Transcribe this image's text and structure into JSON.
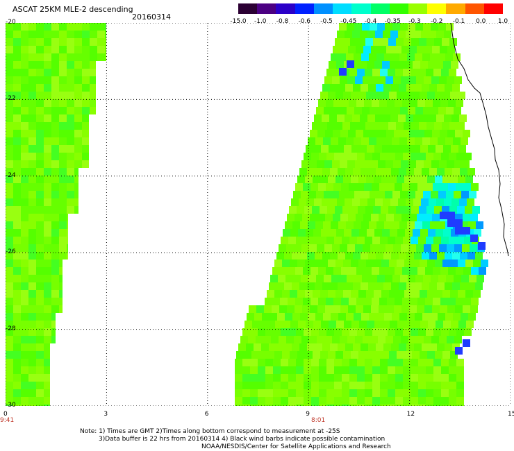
{
  "header": {
    "title": "ASCAT 25KM MLE-2 descending",
    "date": "20160314"
  },
  "colorbar": {
    "labels": [
      "-15.0",
      "-1.0",
      "-0.8",
      "-0.6",
      "-0.5",
      "-0.45",
      "-0.4",
      "-0.35",
      "-0.3",
      "-0.2",
      "-0.1",
      "0.0",
      "1.0"
    ],
    "colors": [
      "#2b0033",
      "#4b0082",
      "#2a00c8",
      "#0020ff",
      "#0090ff",
      "#00ddff",
      "#00ffcc",
      "#00ff66",
      "#33ff00",
      "#99ff00",
      "#ffff00",
      "#ffaa00",
      "#ff5500",
      "#ff0000"
    ]
  },
  "axes": {
    "y_ticks": [
      "-20",
      "-22",
      "-24",
      "-26",
      "-28",
      "-30"
    ],
    "x_ticks": [
      "0",
      "3",
      "6",
      "9",
      "12",
      "15"
    ],
    "x_range": [
      0,
      15
    ],
    "y_range": [
      -30,
      -20
    ],
    "grid": true
  },
  "times": [
    "9:41",
    "8:01"
  ],
  "notes": [
    "Note: 1) Times are GMT 2)Times along bottom correspond to measurement at -25S",
    "3)Data buffer is 22 hrs from 20160314 4) Black wind barbs indicate possible contamination",
    "NOAA/NESDIS/Center for Satellite Applications and Research"
  ],
  "map_data": {
    "field": "MLE-2",
    "units_scale": "colorbar",
    "swaths": [
      {
        "x_range": [
          0,
          3
        ],
        "y_range": [
          -30,
          -20
        ],
        "typical_value": "-0.3"
      },
      {
        "x_range": [
          7,
          14.8
        ],
        "y_range": [
          -30,
          -20
        ],
        "typical_value": "-0.35",
        "min_value": "-0.6"
      }
    ],
    "coastline": "east edge, lon 13.5 to 15"
  }
}
